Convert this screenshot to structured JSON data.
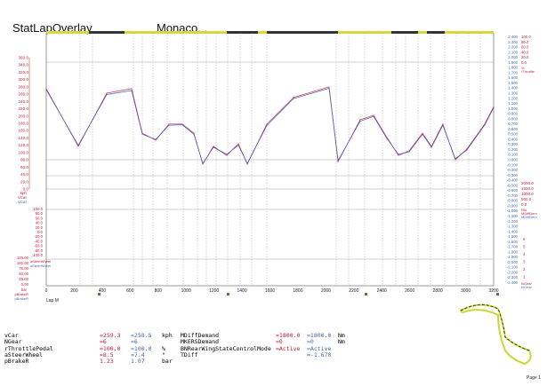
{
  "header": {
    "title": "StatLapOverlay",
    "track": "Monaco, ,"
  },
  "colors": {
    "lap1": "#d0243c",
    "lap2": "#3c5cc0",
    "axis_red": "#c0203a",
    "axis_blue": "#4a6ab0",
    "track_bar": "#d8d83a",
    "grid": "#888888"
  },
  "chart_data": {
    "type": "line",
    "xlabel": "Lap M",
    "xlim": [
      0,
      3200
    ],
    "xticks": [
      0,
      200,
      400,
      600,
      800,
      1000,
      1200,
      1400,
      1600,
      1800,
      2000,
      2200,
      2400,
      2600,
      2800,
      3000,
      3200
    ],
    "ylabel": "kph",
    "ylim": [
      0,
      360
    ],
    "yticks": [
      "360.0",
      "340.0",
      "320.0",
      "300.0",
      "280.0",
      "260.0",
      "240.0",
      "220.0",
      "200.0",
      "180.0",
      "160.0",
      "140.0",
      "120.0",
      "100.0",
      "80.0",
      "60.0",
      "40.0",
      "20.0",
      "0.0"
    ],
    "series": [
      {
        "name": "vCar",
        "x": [
          0,
          229,
          433,
          611,
          687,
          783,
          878,
          973,
          1056,
          1120,
          1196,
          1291,
          1374,
          1438,
          1578,
          1769,
          2023,
          2087,
          2246,
          2341,
          2437,
          2519,
          2596,
          2691,
          2755,
          2837,
          2926,
          3009,
          3136,
          3200
        ],
        "values": [
          275,
          117,
          263,
          275,
          153,
          134,
          178,
          178,
          153,
          68,
          117,
          92,
          124,
          68,
          178,
          251,
          280,
          75,
          190,
          202,
          141,
          92,
          105,
          153,
          117,
          178,
          80,
          110,
          178,
          226
        ]
      },
      {
        "name": "vCar",
        "x": [
          0,
          229,
          433,
          611,
          687,
          783,
          878,
          973,
          1056,
          1120,
          1196,
          1291,
          1374,
          1438,
          1578,
          1769,
          2023,
          2087,
          2246,
          2341,
          2437,
          2519,
          2596,
          2691,
          2755,
          2837,
          2926,
          3009,
          3136,
          3200
        ],
        "values": [
          272,
          120,
          259,
          270,
          150,
          136,
          175,
          176,
          150,
          70,
          114,
          95,
          120,
          70,
          174,
          248,
          276,
          78,
          186,
          199,
          138,
          95,
          102,
          150,
          114,
          175,
          83,
          107,
          175,
          222
        ]
      }
    ],
    "steer_axis": {
      "label": "aSteerWheel",
      "ticks": [
        "100.0",
        "80.0",
        "60.0",
        "40.0",
        "20.0",
        "0.0",
        "-20.0",
        "-40.0",
        "-60.0",
        "-80.0",
        "-100.0"
      ]
    },
    "brake_axis": {
      "label": "pBrakeR",
      "unit": "bar",
      "ticks": [
        "125.00",
        "100.00",
        "75.00",
        "50.00",
        "25.00",
        "0.00"
      ]
    },
    "right_axis": {
      "ticks": [
        "2.400",
        "2.300",
        "2.200",
        "2.100",
        "2.000",
        "1.900",
        "1.800",
        "1.700",
        "1.600",
        "1.500",
        "1.400",
        "1.300",
        "1.200",
        "1.100",
        "1.000",
        "0.900",
        "0.800",
        "0.700",
        "0.600",
        "0.500",
        "0.400",
        "0.300",
        "0.200",
        "0.100",
        "0.000",
        "-0.100",
        "-0.200",
        "-0.300",
        "-0.400",
        "-0.500",
        "-0.600",
        "-0.700",
        "-0.800",
        "-0.900",
        "-1.000",
        "-1.100",
        "-1.200",
        "-1.300",
        "-1.400",
        "-1.500",
        "-1.600",
        "-1.700",
        "-1.800",
        "-1.900",
        "-2.000",
        "-2.100",
        "-2.200",
        "-2.300",
        "-2.400"
      ]
    },
    "throttle_axis": {
      "unit": "%",
      "label": "rThrottle",
      "ticks": [
        "100.0",
        "80.0",
        "60.0",
        "40.0",
        "20.0",
        "0.0"
      ]
    },
    "diff_axis": {
      "unit": "Nm",
      "label": "MDiffDem",
      "ticks": [
        "2000.0",
        "1500.0",
        "1000.0",
        "500.0",
        "0.0"
      ]
    },
    "gear_axis": {
      "label": "NGear",
      "ticks": [
        "6",
        "5",
        "4",
        "3",
        "2",
        "1"
      ]
    }
  },
  "readout": {
    "left": [
      {
        "name": "vCar",
        "v1": "=259.3",
        "v2": "=258.5",
        "unit": "kph"
      },
      {
        "name": "NGear",
        "v1": "=6",
        "v2": "=6",
        "unit": ""
      },
      {
        "name": "rThrottlePedal",
        "v1": "=100.0",
        "v2": "=100.0",
        "unit": "%"
      },
      {
        "name": "aSteerWheel",
        "v1": "=8.5",
        "v2": "=7.4",
        "unit": "°"
      },
      {
        "name": "pBrakeR",
        "v1": "1.23",
        "v2": "1.07",
        "unit": "bar"
      }
    ],
    "right": [
      {
        "name": "MDiffDemand",
        "v1": "=1800.0",
        "v2": "=1800.0",
        "unit": "Nm"
      },
      {
        "name": "MKERSDemand",
        "v1": "=0",
        "v2": "=0",
        "unit": "Nm"
      },
      {
        "name": "BNRearWingStateControlMode",
        "v1": "=Active",
        "v2": "=Active",
        "unit": ""
      },
      {
        "name": "TDiff",
        "v1": "",
        "v2": "=-1.670",
        "unit": ""
      }
    ]
  },
  "footer": {
    "page": "Page 1"
  }
}
